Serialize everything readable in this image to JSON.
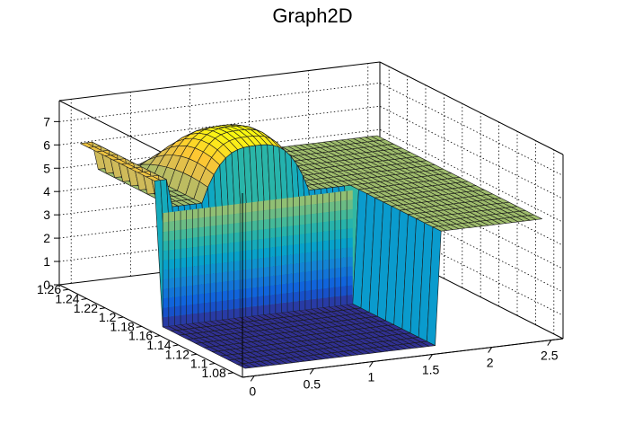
{
  "chart_data": {
    "type": "surface3d",
    "title": "Graph2D",
    "x_ticks": [
      "0",
      "0.5",
      "1",
      "1.5",
      "2",
      "2.5"
    ],
    "y_ticks": [
      "1.08",
      "1.1",
      "1.12",
      "1.14",
      "1.16",
      "1.18",
      "1.2",
      "1.22",
      "1.24",
      "1.26"
    ],
    "z_ticks": [
      "0",
      "1",
      "2",
      "3",
      "4",
      "5",
      "6",
      "7"
    ],
    "xlim": [
      -0.1,
      2.6
    ],
    "ylim": [
      1.07,
      1.27
    ],
    "zlim": [
      0,
      7.9
    ],
    "grid": true,
    "palette": [
      "#352a87",
      "#0f5cdd",
      "#1481d6",
      "#06a4ca",
      "#2eb7a4",
      "#87bf77",
      "#d1bb59",
      "#fec832",
      "#f9fb0e"
    ],
    "mesh_color": "#1a1a1a",
    "surface": {
      "x_range": [
        0.0,
        2.5
      ],
      "y_range": [
        1.08,
        1.26
      ],
      "x_steps": 50,
      "y_steps": 20,
      "cliff_x_min": 0.0,
      "cliff_x_max": 1.6,
      "cliff_y_max": 1.17,
      "floor_value": 0.12,
      "ridge_peak": 7.5,
      "ridge_center_x": 0.85,
      "ridge_center_y": 1.2,
      "plateau_value": 6.2,
      "edge_ridge_value": 5.0
    }
  }
}
